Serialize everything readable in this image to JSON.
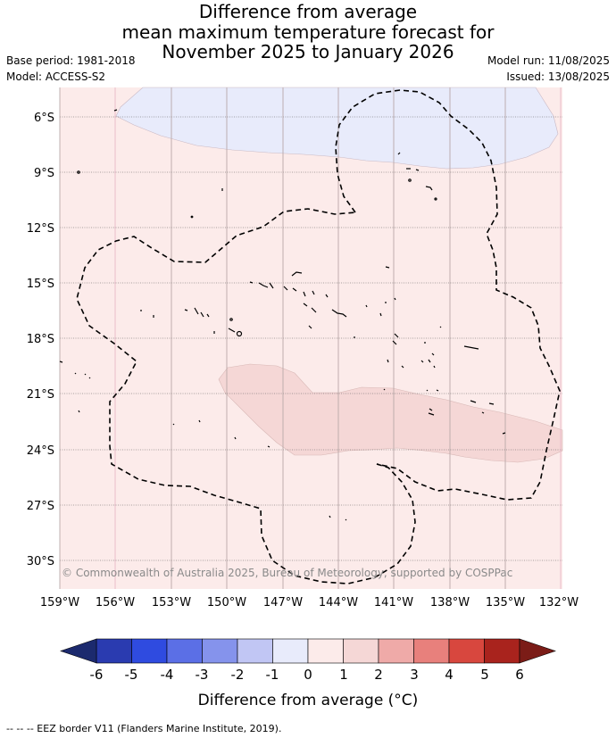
{
  "header": {
    "title_lines": [
      "Difference from average",
      "mean maximum temperature forecast for",
      "November 2025 to January 2026"
    ],
    "left_info": [
      "Base period: 1981-2018",
      "Model: ACCESS-S2"
    ],
    "right_info": [
      "Model run: 11/08/2025",
      "Issued: 13/08/2025"
    ]
  },
  "map": {
    "lat_labels": [
      "6°S",
      "9°S",
      "12°S",
      "15°S",
      "18°S",
      "21°S",
      "24°S",
      "27°S",
      "30°S"
    ],
    "lon_labels": [
      "159°W",
      "156°W",
      "153°W",
      "150°W",
      "147°W",
      "144°W",
      "141°W",
      "138°W",
      "135°W",
      "132°W"
    ],
    "copyright": "© Commonwealth of Australia 2025, Bureau of Meteorology, supported by COSPPac",
    "background_color": "#fcebea",
    "fill_regions": [
      {
        "category": "-1 to 0",
        "color": "#e8ebfb"
      },
      {
        "category": "1 to 2",
        "color": "#f5d7d6"
      }
    ]
  },
  "colorbar": {
    "ticks": [
      "-6",
      "-5",
      "-4",
      "-3",
      "-2",
      "-1",
      "0",
      "1",
      "2",
      "3",
      "4",
      "5",
      "6"
    ],
    "colors": [
      "#1c2a6e",
      "#2a3bb0",
      "#2f4be0",
      "#5b6fe6",
      "#8593ec",
      "#c1c6f4",
      "#e8ebfb",
      "#fcebea",
      "#f5d7d6",
      "#efaaa8",
      "#e8807c",
      "#d8473e",
      "#a9231d",
      "#7b1c17"
    ],
    "label": "Difference from average (°C)"
  },
  "footer": {
    "legend_text": "-- -- -- EEZ border V11 (Flanders Marine Institute, 2019)."
  }
}
